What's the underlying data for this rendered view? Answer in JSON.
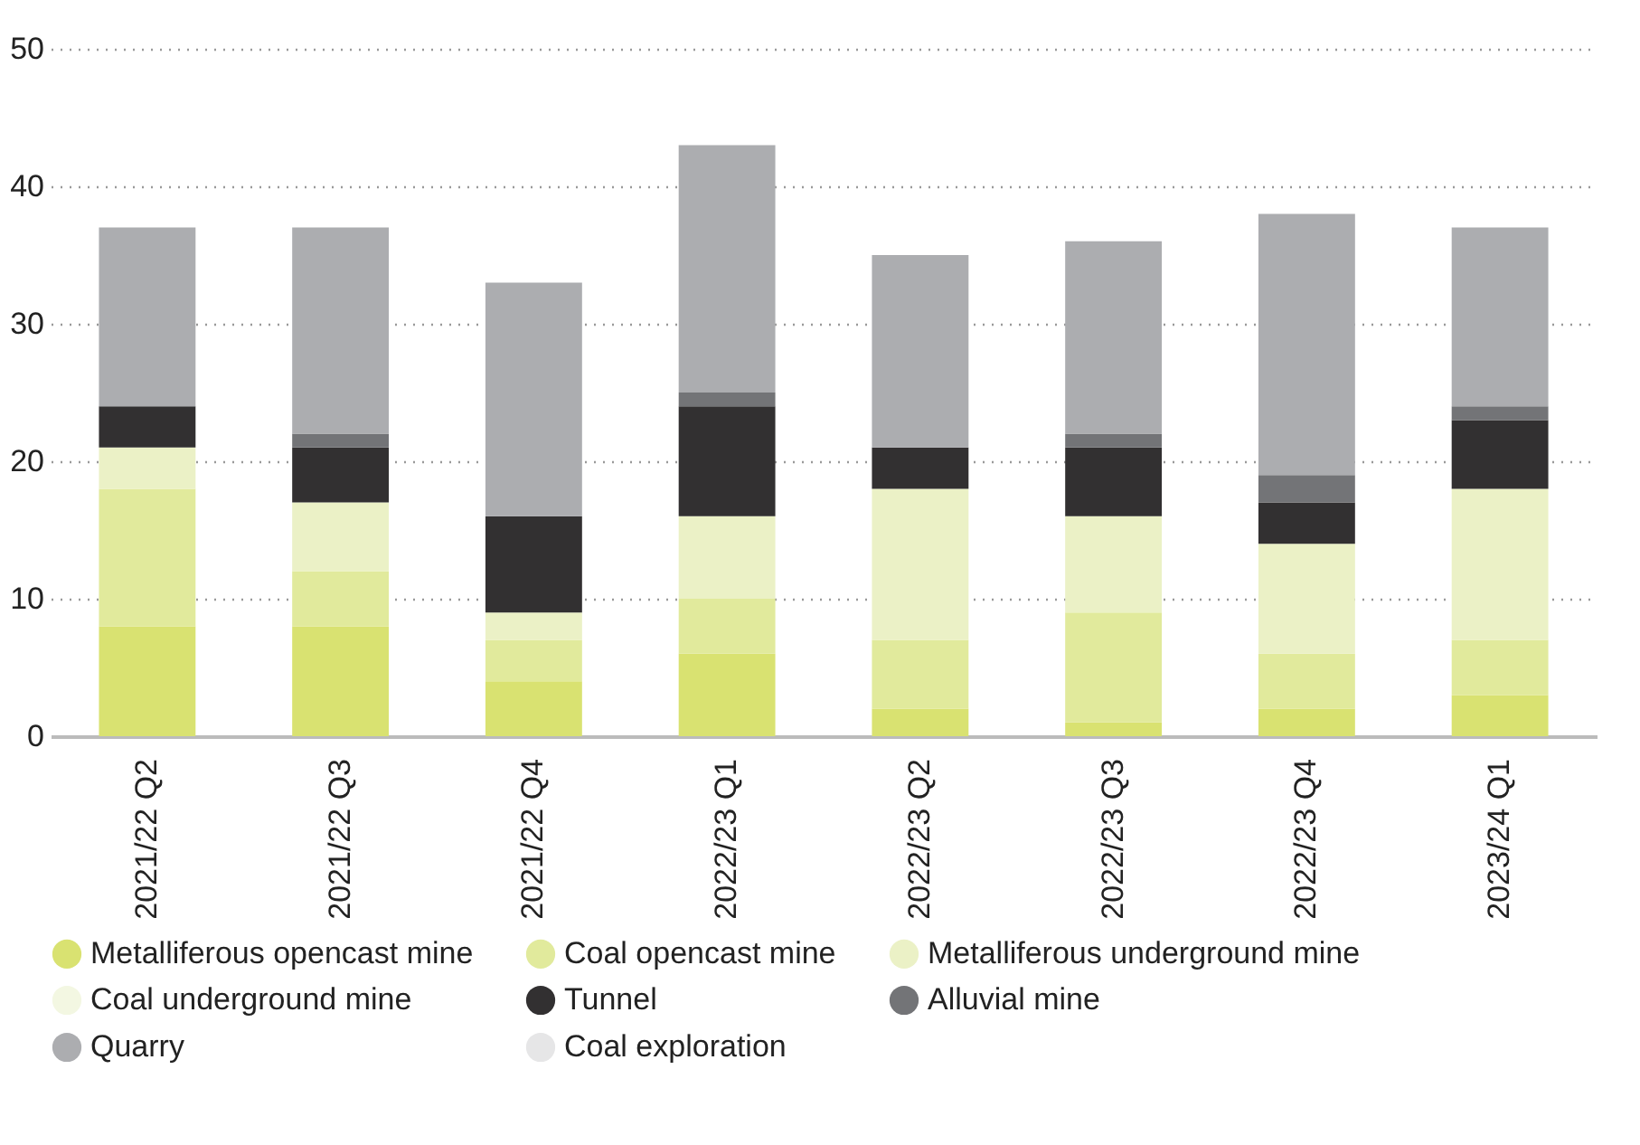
{
  "chart_data": {
    "type": "bar",
    "stacked": true,
    "categories": [
      "2021/22 Q2",
      "2021/22 Q3",
      "2021/22 Q4",
      "2022/23 Q1",
      "2022/23 Q2",
      "2022/23 Q3",
      "2022/23 Q4",
      "2023/24 Q1"
    ],
    "series": [
      {
        "name": "Metalliferous opencast mine",
        "color": "#d9e271",
        "values": [
          8,
          8,
          4,
          6,
          2,
          1,
          2,
          3
        ]
      },
      {
        "name": "Coal opencast mine",
        "color": "#e1ea9c",
        "values": [
          10,
          4,
          3,
          4,
          5,
          8,
          4,
          4
        ]
      },
      {
        "name": "Metalliferous underground mine",
        "color": "#ebf1c6",
        "values": [
          3,
          5,
          2,
          6,
          11,
          7,
          8,
          11
        ]
      },
      {
        "name": "Coal underground mine",
        "color": "#f3f7e2",
        "values": [
          0,
          0,
          0,
          0,
          0,
          0,
          0,
          0
        ]
      },
      {
        "name": "Tunnel",
        "color": "#323031",
        "values": [
          3,
          4,
          7,
          8,
          3,
          5,
          3,
          5
        ]
      },
      {
        "name": "Alluvial mine",
        "color": "#737477",
        "values": [
          0,
          1,
          0,
          1,
          0,
          1,
          2,
          1
        ]
      },
      {
        "name": "Quarry",
        "color": "#acadb0",
        "values": [
          13,
          15,
          17,
          18,
          14,
          14,
          19,
          13
        ]
      },
      {
        "name": "Coal exploration",
        "color": "#e6e6e7",
        "values": [
          0,
          0,
          0,
          0,
          0,
          0,
          0,
          0
        ]
      }
    ],
    "ylim": [
      0,
      50
    ],
    "yticks": [
      0,
      10,
      20,
      30,
      40,
      50
    ],
    "grid": "y",
    "legend": "bottom"
  }
}
